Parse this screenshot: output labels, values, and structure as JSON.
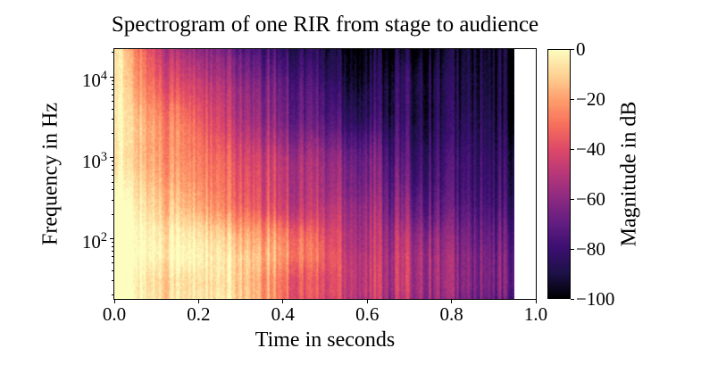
{
  "figure": {
    "background": "#ffffff",
    "frame_color": "#000000"
  },
  "chart_data": {
    "type": "heatmap",
    "subtype": "spectrogram",
    "title": "Spectrogram of one RIR from stage to audience",
    "xlabel": "Time in seconds",
    "ylabel": "Frequency in Hz",
    "x_range": [
      0.0,
      1.0
    ],
    "data_time_max": 0.95,
    "freq_range_hz": [
      18,
      22050
    ],
    "y_scale": "log",
    "grid": false,
    "x_ticks": {
      "values": [
        0.0,
        0.2,
        0.4,
        0.6,
        0.8,
        1.0
      ],
      "labels": [
        "0.0",
        "0.2",
        "0.4",
        "0.6",
        "0.8",
        "1.0"
      ]
    },
    "y_ticks": {
      "base": 10,
      "values": [
        100,
        1000,
        10000
      ],
      "exponents": [
        2,
        3,
        4
      ]
    },
    "colorbar": {
      "label": "Magnitude in dB",
      "vmin": -100,
      "vmax": 0,
      "ticks": [
        0,
        -20,
        -40,
        -60,
        -80,
        -100
      ],
      "tick_labels": [
        "0",
        "−20",
        "−40",
        "−60",
        "−80",
        "−100"
      ],
      "position": "right"
    },
    "colormap": {
      "name": "magma",
      "anchors": [
        [
          0.0,
          0,
          0,
          4
        ],
        [
          0.1,
          29,
          17,
          71
        ],
        [
          0.2,
          59,
          15,
          112
        ],
        [
          0.3,
          97,
          29,
          128
        ],
        [
          0.4,
          140,
          41,
          129
        ],
        [
          0.5,
          183,
          55,
          121
        ],
        [
          0.6,
          222,
          73,
          104
        ],
        [
          0.7,
          247,
          112,
          92
        ],
        [
          0.8,
          254,
          159,
          109
        ],
        [
          0.9,
          254,
          211,
          149
        ],
        [
          1.0,
          252,
          253,
          191
        ]
      ]
    },
    "times": [
      0.0,
      0.025,
      0.05,
      0.1,
      0.15,
      0.2,
      0.25,
      0.3,
      0.35,
      0.4,
      0.45,
      0.5,
      0.55,
      0.6,
      0.65,
      0.7,
      0.75,
      0.8,
      0.85,
      0.9,
      0.95
    ],
    "freqs_hz": [
      30,
      60,
      125,
      250,
      500,
      1000,
      2000,
      4000,
      8000,
      16000,
      22000
    ],
    "magnitude_db": [
      [
        -6,
        -6,
        -7,
        -8,
        -10,
        -12,
        -15,
        -18,
        -24,
        -30,
        -38,
        -45,
        -50,
        -55,
        -58,
        -60,
        -63,
        -66,
        -70,
        -73,
        -75
      ],
      [
        -2,
        -2,
        -2,
        -3,
        -4,
        -6,
        -9,
        -12,
        -18,
        -25,
        -32,
        -38,
        -44,
        -50,
        -53,
        -55,
        -58,
        -62,
        -66,
        -69,
        -72
      ],
      [
        -1,
        -1,
        -2,
        -4,
        -7,
        -10,
        -14,
        -18,
        -24,
        -30,
        -36,
        -42,
        -47,
        -52,
        -55,
        -58,
        -62,
        -66,
        -69,
        -72,
        -75
      ],
      [
        -2,
        -3,
        -5,
        -8,
        -13,
        -18,
        -23,
        -28,
        -33,
        -38,
        -43,
        -48,
        -52,
        -56,
        -60,
        -64,
        -68,
        -71,
        -74,
        -77,
        -80
      ],
      [
        -3,
        -5,
        -7,
        -12,
        -18,
        -24,
        -30,
        -35,
        -40,
        -45,
        -50,
        -55,
        -59,
        -63,
        -66,
        -70,
        -74,
        -77,
        -80,
        -82,
        -85
      ],
      [
        -4,
        -6,
        -9,
        -15,
        -22,
        -28,
        -34,
        -40,
        -45,
        -50,
        -55,
        -60,
        -64,
        -67,
        -70,
        -74,
        -77,
        -80,
        -83,
        -86,
        -88
      ],
      [
        -5,
        -8,
        -11,
        -18,
        -25,
        -32,
        -39,
        -45,
        -51,
        -56,
        -61,
        -65,
        -69,
        -72,
        -76,
        -80,
        -83,
        -86,
        -88,
        -90,
        -92
      ],
      [
        -5,
        -9,
        -14,
        -22,
        -30,
        -38,
        -45,
        -52,
        -58,
        -63,
        -68,
        -72,
        -76,
        -80,
        -83,
        -85,
        -88,
        -90,
        -92,
        -93,
        -95
      ],
      [
        -6,
        -11,
        -18,
        -28,
        -37,
        -45,
        -53,
        -60,
        -66,
        -72,
        -76,
        -80,
        -83,
        -86,
        -88,
        -90,
        -92,
        -93,
        -94,
        -95,
        -96
      ],
      [
        -6,
        -13,
        -22,
        -35,
        -46,
        -55,
        -63,
        -70,
        -76,
        -80,
        -84,
        -88,
        -90,
        -92,
        -93,
        -94,
        -95,
        -96,
        -96,
        -97,
        -97
      ],
      [
        -7,
        -16,
        -26,
        -40,
        -52,
        -62,
        -70,
        -77,
        -82,
        -86,
        -89,
        -92,
        -94,
        -95,
        -96,
        -96,
        -97,
        -97,
        -98,
        -98,
        -98
      ]
    ]
  }
}
